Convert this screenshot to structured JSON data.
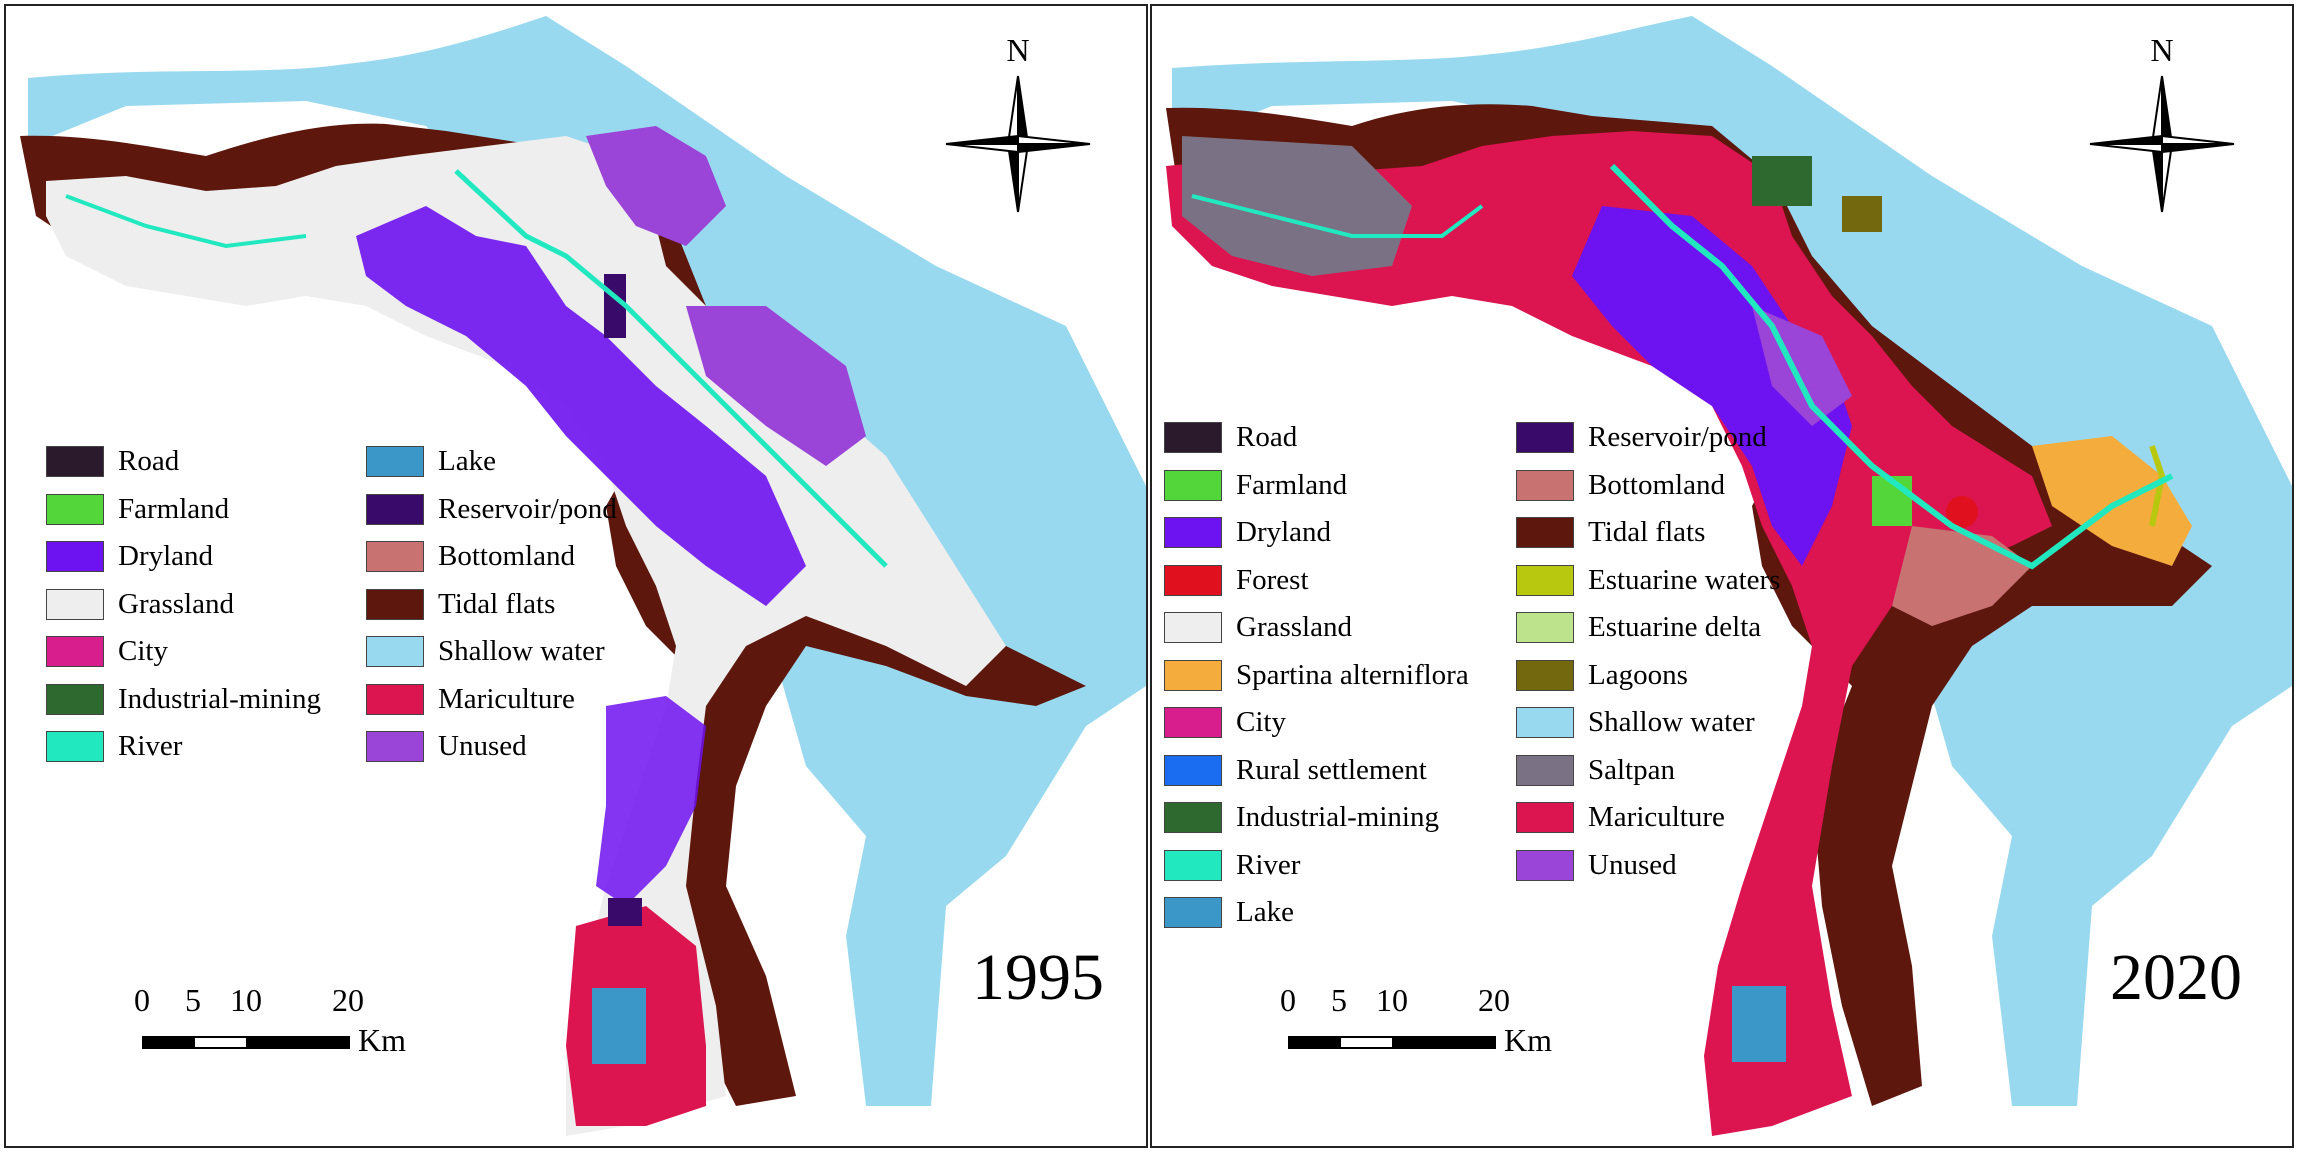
{
  "panels": [
    {
      "year": "1995",
      "north_label": "N",
      "scale": {
        "ticks": [
          "0",
          "5",
          "10",
          "20"
        ],
        "unit": "Km"
      },
      "legend": [
        {
          "label": "Road",
          "color": "#2b1a2c"
        },
        {
          "label": "Farmland",
          "color": "#52d63a"
        },
        {
          "label": "Dryland",
          "color": "#6d12f0"
        },
        {
          "label": "Grassland",
          "color": "#eeeeee"
        },
        {
          "label": "City",
          "color": "#d81e8c"
        },
        {
          "label": "Industrial-mining",
          "color": "#2e6a30"
        },
        {
          "label": "River",
          "color": "#22e8c0"
        },
        {
          "label": "Lake",
          "color": "#3a97c7"
        },
        {
          "label": "Reservoir/pond",
          "color": "#3a0a6a"
        },
        {
          "label": "Bottomland",
          "color": "#c87272"
        },
        {
          "label": "Tidal flats",
          "color": "#5e170d"
        },
        {
          "label": "Shallow water",
          "color": "#99d9f0"
        },
        {
          "label": "Mariculture",
          "color": "#dc1450"
        },
        {
          "label": "Unused",
          "color": "#9a44d8"
        }
      ]
    },
    {
      "year": "2020",
      "north_label": "N",
      "scale": {
        "ticks": [
          "0",
          "5",
          "10",
          "20"
        ],
        "unit": "Km"
      },
      "legend": [
        {
          "label": "Road",
          "color": "#2b1a2c"
        },
        {
          "label": "Farmland",
          "color": "#52d63a"
        },
        {
          "label": "Dryland",
          "color": "#6d12f0"
        },
        {
          "label": "Forest",
          "color": "#e0101e"
        },
        {
          "label": "Grassland",
          "color": "#eeeeee"
        },
        {
          "label": "Spartina alterniflora",
          "color": "#f4ac3c"
        },
        {
          "label": "City",
          "color": "#d81e8c"
        },
        {
          "label": "Rural settlement",
          "color": "#1a6cf0"
        },
        {
          "label": "Industrial-mining",
          "color": "#2e6a30"
        },
        {
          "label": "River",
          "color": "#22e8c0"
        },
        {
          "label": "Lake",
          "color": "#3a97c7"
        },
        {
          "label": "Reservoir/pond",
          "color": "#3a0a6a"
        },
        {
          "label": "Bottomland",
          "color": "#c87272"
        },
        {
          "label": "Tidal flats",
          "color": "#5e170d"
        },
        {
          "label": "Estuarine waters",
          "color": "#b8c80e"
        },
        {
          "label": "Estuarine delta",
          "color": "#bde38c"
        },
        {
          "label": "Lagoons",
          "color": "#74680e"
        },
        {
          "label": "Shallow water",
          "color": "#99d9f0"
        },
        {
          "label": "Saltpan",
          "color": "#7a7284"
        },
        {
          "label": "Mariculture",
          "color": "#dc1450"
        },
        {
          "label": "Unused",
          "color": "#9a44d8"
        }
      ]
    }
  ]
}
